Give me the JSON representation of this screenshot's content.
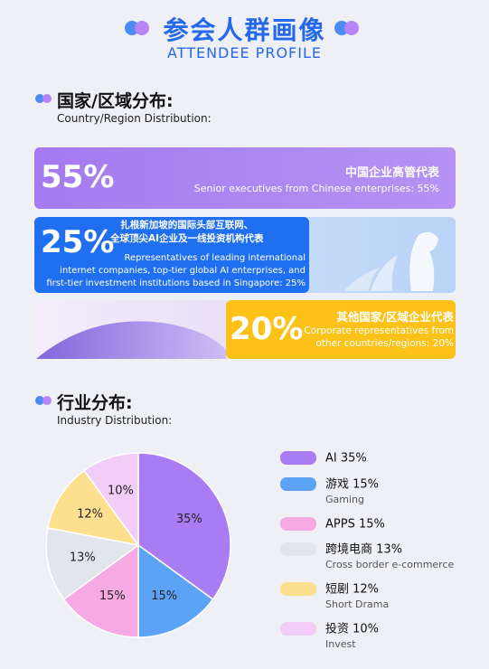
{
  "header": {
    "title": "参会人群画像",
    "subtitle": "ATTENDEE PROFILE"
  },
  "country": {
    "heading": "国家/区域分布:",
    "subheading": "Country/Region Distribution:",
    "items": [
      {
        "percent": "55%",
        "title_lines": [
          "中国企业高管代表"
        ],
        "desc_lines": [
          "Senior executives from Chinese enterprises: 55%"
        ]
      },
      {
        "percent": "25%",
        "title_lines": [
          "扎根新加坡的国际头部互联网、",
          "全球顶尖AI企业及一线投资机构代表"
        ],
        "desc_lines": [
          "Representatives of leading international",
          "internet companies, top-tier global AI enterprises, and",
          "first-tier investment institutions based in Singapore: 25%"
        ]
      },
      {
        "percent": "20%",
        "title_lines": [
          "其他国家/区域企业代表"
        ],
        "desc_lines": [
          "Corporate representatives from",
          "other countries/regions: 20%"
        ]
      }
    ]
  },
  "industry": {
    "heading": "行业分布:",
    "subheading": "Industry Distribution:"
  },
  "chart_data": {
    "type": "pie",
    "categories": [
      "AI 35%",
      "游戏 15%",
      "APPS 15%",
      "跨境电商 13%",
      "短剧 12%",
      "投资 10%"
    ],
    "sublabels": {
      "1": "Gaming",
      "3": "Cross border e-commerce",
      "4": "Short Drama",
      "5": "Invest"
    },
    "values": [
      35,
      15,
      15,
      13,
      12,
      10
    ],
    "value_labels": [
      "35%",
      "15%",
      "15%",
      "13%",
      "12%",
      "10%"
    ],
    "colors": [
      "#a97cf4",
      "#5da3f5",
      "#f6a9e2",
      "#e3e5ed",
      "#fde08e",
      "#f2cdf7"
    ]
  }
}
